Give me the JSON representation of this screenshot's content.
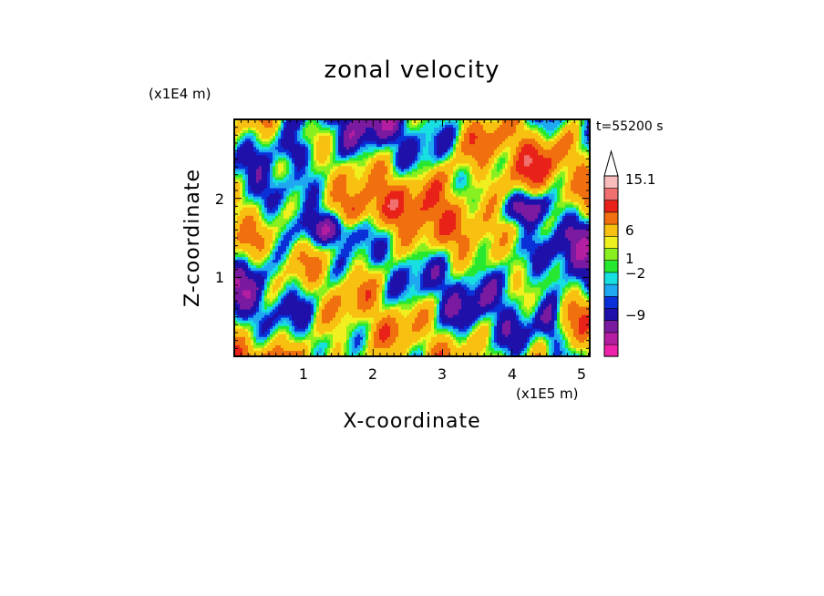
{
  "chart_data": {
    "type": "heatmap",
    "title": "zonal velocity",
    "xlabel": "X-coordinate",
    "ylabel": "Z-coordinate",
    "x_unit": "(x1E5 m)",
    "y_unit": "(x1E4 m)",
    "time_label": "t=55200 s",
    "xlim": [
      0,
      5.12
    ],
    "ylim": [
      0,
      3.0
    ],
    "x_ticks": [
      "1",
      "2",
      "3",
      "4",
      "5"
    ],
    "y_ticks": [
      "1",
      "2"
    ],
    "colorbar": {
      "labels": [
        "15.1",
        "6",
        "1",
        "−2",
        "−9"
      ],
      "levels": [
        -15,
        -12,
        -9,
        -6,
        -3,
        -2,
        -1,
        0,
        1,
        2,
        3,
        6,
        9,
        12,
        15.1
      ],
      "colors": [
        "#ee22aa",
        "#b41ea0",
        "#7a1aa0",
        "#1e10a8",
        "#0a30d8",
        "#1fa8f0",
        "#18dfe0",
        "#26e830",
        "#88ef20",
        "#f0f020",
        "#f8c010",
        "#f07010",
        "#e82218",
        "#f07070",
        "#f8bcbc"
      ],
      "extend_top": "white-triangle"
    },
    "grid": false
  }
}
